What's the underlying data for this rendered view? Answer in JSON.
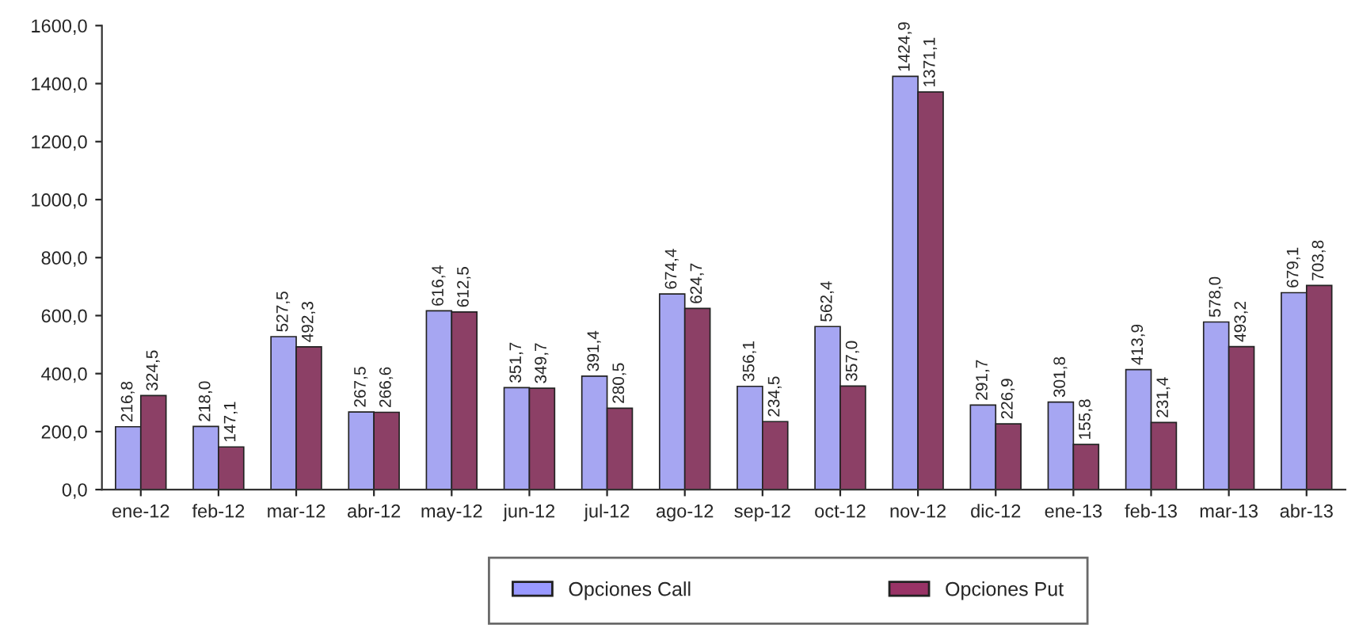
{
  "chart_data": {
    "type": "bar",
    "categories": [
      "ene-12",
      "feb-12",
      "mar-12",
      "abr-12",
      "may-12",
      "jun-12",
      "jul-12",
      "ago-12",
      "sep-12",
      "oct-12",
      "nov-12",
      "dic-12",
      "ene-13",
      "feb-13",
      "mar-13",
      "abr-13"
    ],
    "series": [
      {
        "name": "Opciones Call",
        "color": "#9999ff",
        "values": [
          216.8,
          218.0,
          527.5,
          267.5,
          616.4,
          351.7,
          391.4,
          674.4,
          356.1,
          562.4,
          1424.9,
          291.7,
          301.8,
          413.9,
          578.0,
          679.1
        ],
        "value_labels": [
          "216,8",
          "218,0",
          "527,5",
          "267,5",
          "616,4",
          "351,7",
          "391,4",
          "674,4",
          "356,1",
          "562,4",
          "1424,9",
          "291,7",
          "301,8",
          "413,9",
          "578,0",
          "679,1"
        ]
      },
      {
        "name": "Opciones Put",
        "color": "#993366",
        "values": [
          324.5,
          147.1,
          492.3,
          266.6,
          612.5,
          349.7,
          280.5,
          624.7,
          234.5,
          357.0,
          1371.1,
          226.9,
          155.8,
          231.4,
          493.2,
          703.8
        ],
        "value_labels": [
          "324,5",
          "147,1",
          "492,3",
          "266,6",
          "612,5",
          "349,7",
          "280,5",
          "624,7",
          "234,5",
          "357,0",
          "1371,1",
          "226,9",
          "155,8",
          "231,4",
          "493,2",
          "703,8"
        ]
      }
    ],
    "ylim": [
      0,
      1600
    ],
    "yticks": [
      {
        "value": 0,
        "label": "0,0"
      },
      {
        "value": 200,
        "label": "200,0"
      },
      {
        "value": 400,
        "label": "400,0"
      },
      {
        "value": 600,
        "label": "600,0"
      },
      {
        "value": 800,
        "label": "800,0"
      },
      {
        "value": 1000,
        "label": "1000,0"
      },
      {
        "value": 1200,
        "label": "1200,0"
      },
      {
        "value": 1400,
        "label": "1400,0"
      },
      {
        "value": 1600,
        "label": "1600,0"
      }
    ],
    "grid": false,
    "legend": "bottom"
  }
}
